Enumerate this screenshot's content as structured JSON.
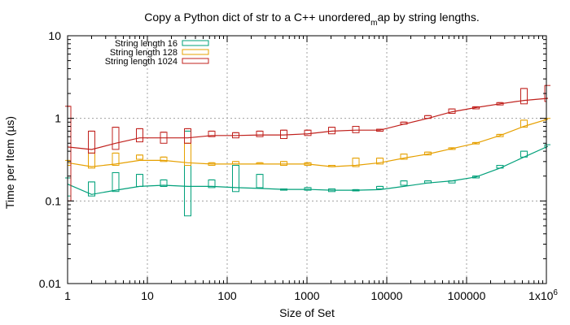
{
  "chart_data": {
    "type": "line",
    "title_main": "Copy a Python dict of str to a C++ unordered",
    "title_sub": "m",
    "title_end": "ap by string lengths.",
    "xlabel": "Size of Set",
    "ylabel": "Time per Item (µs)",
    "x_scale": "log",
    "y_scale": "log",
    "xlim": [
      1,
      1000000
    ],
    "ylim": [
      0.01,
      10
    ],
    "grid": true,
    "legend_position": "top-left",
    "x_ticks": [
      {
        "value": 1,
        "label": "1"
      },
      {
        "value": 10,
        "label": "10"
      },
      {
        "value": 100,
        "label": "100"
      },
      {
        "value": 1000,
        "label": "1000"
      },
      {
        "value": 10000,
        "label": "10000"
      },
      {
        "value": 100000,
        "label": "100000"
      },
      {
        "value": 1000000,
        "label": "1x10"
      }
    ],
    "x_tick_last_superscript": "6",
    "y_ticks": [
      {
        "value": 0.01,
        "label": "0.01"
      },
      {
        "value": 0.1,
        "label": "0.1"
      },
      {
        "value": 1,
        "label": "1"
      },
      {
        "value": 10,
        "label": "10"
      }
    ],
    "x": [
      1,
      2,
      4,
      8,
      16,
      32,
      64,
      128,
      256,
      512,
      1024,
      2048,
      4096,
      8192,
      16384,
      32768,
      65536,
      131072,
      262144,
      524288,
      1048576
    ],
    "series": [
      {
        "name": "String length 16",
        "color": "#00a07a",
        "values": [
          0.16,
          0.12,
          0.135,
          0.15,
          0.155,
          0.15,
          0.15,
          0.145,
          0.142,
          0.138,
          0.138,
          0.135,
          0.135,
          0.137,
          0.15,
          0.165,
          0.175,
          0.195,
          0.25,
          0.34,
          0.46
        ],
        "boxes": [
          [
            0.115,
            0.19
          ],
          [
            0.115,
            0.17
          ],
          [
            0.13,
            0.22
          ],
          [
            0.15,
            0.21
          ],
          [
            0.15,
            0.18
          ],
          [
            0.066,
            0.7
          ],
          [
            0.145,
            0.18
          ],
          [
            0.13,
            0.27
          ],
          [
            0.145,
            0.21
          ],
          [
            0.135,
            0.14
          ],
          [
            0.135,
            0.145
          ],
          [
            0.13,
            0.14
          ],
          [
            0.132,
            0.137
          ],
          [
            0.14,
            0.15
          ],
          [
            0.155,
            0.175
          ],
          [
            0.165,
            0.175
          ],
          [
            0.165,
            0.175
          ],
          [
            0.19,
            0.2
          ],
          [
            0.25,
            0.27
          ],
          [
            0.34,
            0.4
          ],
          [
            0.44,
            0.48
          ]
        ]
      },
      {
        "name": "String length 128",
        "color": "#e6a000",
        "values": [
          0.29,
          0.26,
          0.28,
          0.31,
          0.31,
          0.29,
          0.28,
          0.28,
          0.28,
          0.28,
          0.28,
          0.26,
          0.27,
          0.29,
          0.33,
          0.37,
          0.43,
          0.5,
          0.62,
          0.8,
          0.98
        ],
        "boxes": [
          [
            0.27,
            0.31
          ],
          [
            0.25,
            0.38
          ],
          [
            0.27,
            0.38
          ],
          [
            0.32,
            0.36
          ],
          [
            0.3,
            0.34
          ],
          [
            0.27,
            0.5
          ],
          [
            0.27,
            0.29
          ],
          [
            0.28,
            0.3
          ],
          [
            0.28,
            0.29
          ],
          [
            0.27,
            0.3
          ],
          [
            0.27,
            0.29
          ],
          [
            0.26,
            0.27
          ],
          [
            0.26,
            0.33
          ],
          [
            0.28,
            0.33
          ],
          [
            0.32,
            0.37
          ],
          [
            0.36,
            0.39
          ],
          [
            0.42,
            0.44
          ],
          [
            0.49,
            0.51
          ],
          [
            0.6,
            0.64
          ],
          [
            0.78,
            0.95
          ],
          [
            0.95,
            1.0
          ]
        ]
      },
      {
        "name": "String length 1024",
        "color": "#c0201c",
        "values": [
          0.45,
          0.42,
          0.5,
          0.58,
          0.58,
          0.58,
          0.62,
          0.62,
          0.63,
          0.63,
          0.65,
          0.7,
          0.72,
          0.72,
          0.85,
          1.0,
          1.2,
          1.35,
          1.5,
          1.65,
          1.75
        ],
        "boxes": [
          [
            0.1,
            1.4
          ],
          [
            0.38,
            0.7
          ],
          [
            0.42,
            0.78
          ],
          [
            0.52,
            0.75
          ],
          [
            0.5,
            0.68
          ],
          [
            0.5,
            0.75
          ],
          [
            0.6,
            0.7
          ],
          [
            0.58,
            0.67
          ],
          [
            0.6,
            0.7
          ],
          [
            0.57,
            0.72
          ],
          [
            0.62,
            0.72
          ],
          [
            0.65,
            0.78
          ],
          [
            0.67,
            0.8
          ],
          [
            0.7,
            0.74
          ],
          [
            0.85,
            0.9
          ],
          [
            1.0,
            1.08
          ],
          [
            1.15,
            1.3
          ],
          [
            1.3,
            1.38
          ],
          [
            1.45,
            1.55
          ],
          [
            1.5,
            2.3
          ],
          [
            1.6,
            2.5
          ]
        ]
      }
    ]
  }
}
